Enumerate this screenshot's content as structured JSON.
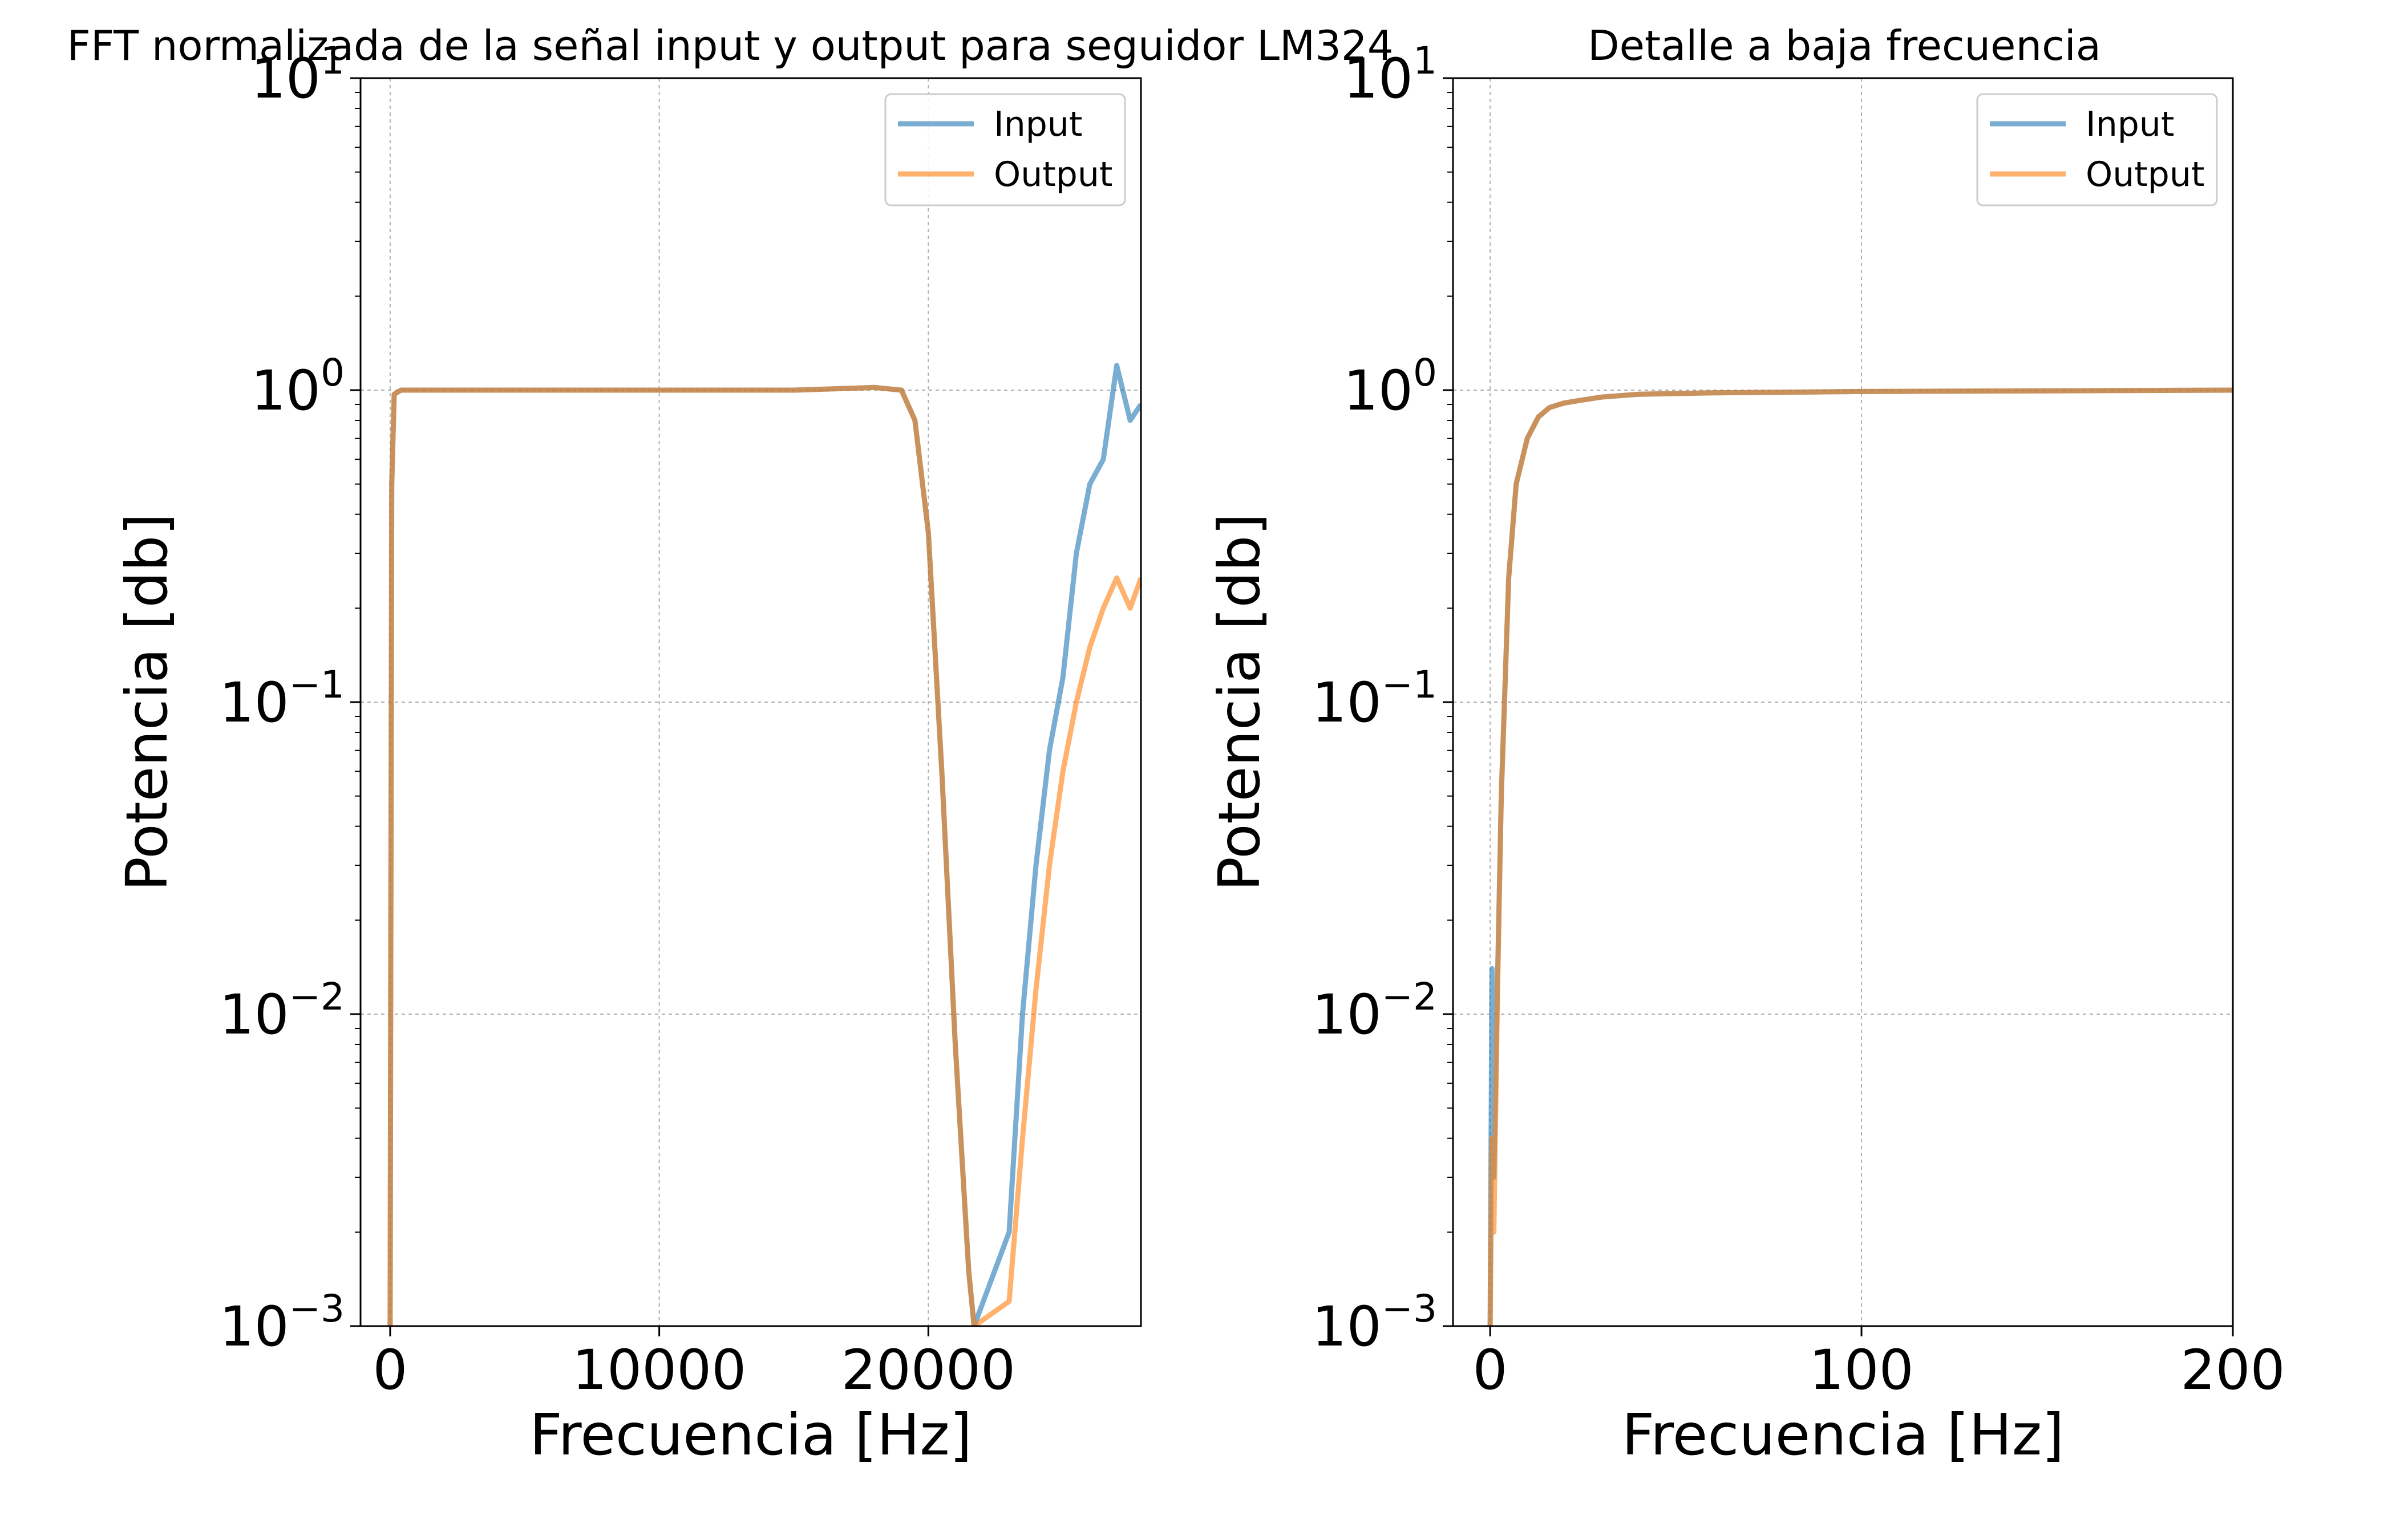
{
  "chart_data": [
    {
      "type": "line",
      "title": "FFT normalizada de la señal input y output para seguidor LM324",
      "xlabel": "Frecuencia [Hz]",
      "ylabel": "Potencia [db]",
      "yscale": "log",
      "xlim": [
        -1100,
        27900
      ],
      "ylim": [
        0.001,
        10
      ],
      "xticks": [
        0,
        10000,
        20000
      ],
      "xticklabels": [
        "0",
        "10000",
        "20000"
      ],
      "yticks": [
        0.001,
        0.01,
        0.1,
        1,
        10
      ],
      "yticklabels": [
        {
          "base": "10",
          "exp": "−3"
        },
        {
          "base": "10",
          "exp": "−2"
        },
        {
          "base": "10",
          "exp": "−1"
        },
        {
          "base": "10",
          "exp": "0"
        },
        {
          "base": "10",
          "exp": "1"
        }
      ],
      "grid": true,
      "legend": {
        "position": "upper right",
        "entries": [
          "Input",
          "Output"
        ]
      },
      "series": [
        {
          "name": "Input",
          "color": "#1f77b4",
          "x": [
            0,
            20,
            60,
            150,
            400,
            1000,
            3000,
            6000,
            9000,
            12000,
            15000,
            18000,
            19000,
            19500,
            20000,
            20500,
            21000,
            21500,
            21700,
            23000,
            23500,
            24000,
            24500,
            25000,
            25500,
            26000,
            26500,
            27000,
            27500,
            27900
          ],
          "y": [
            0.001,
            0.01,
            0.5,
            0.97,
            1.0,
            1.0,
            1.0,
            1.0,
            1.0,
            1.0,
            1.0,
            1.02,
            1.0,
            0.8,
            0.35,
            0.06,
            0.008,
            0.0015,
            0.001,
            0.002,
            0.01,
            0.03,
            0.07,
            0.12,
            0.3,
            0.5,
            0.6,
            1.2,
            0.8,
            0.9
          ]
        },
        {
          "name": "Output",
          "color": "#ff7f0e",
          "x": [
            0,
            20,
            60,
            150,
            400,
            1000,
            3000,
            6000,
            9000,
            12000,
            15000,
            18000,
            19000,
            19500,
            20000,
            20500,
            21000,
            21500,
            21700,
            23000,
            23500,
            24000,
            24500,
            25000,
            25500,
            26000,
            26500,
            27000,
            27500,
            27900
          ],
          "y": [
            0.001,
            0.01,
            0.5,
            0.97,
            1.0,
            1.0,
            1.0,
            1.0,
            1.0,
            1.0,
            1.0,
            1.02,
            1.0,
            0.8,
            0.35,
            0.06,
            0.008,
            0.0015,
            0.001,
            0.0012,
            0.004,
            0.012,
            0.03,
            0.06,
            0.1,
            0.15,
            0.2,
            0.25,
            0.2,
            0.25
          ]
        }
      ]
    },
    {
      "type": "line",
      "title": "Detalle a baja frecuencia",
      "xlabel": "Frecuencia [Hz]",
      "ylabel": "Potencia [db]",
      "yscale": "log",
      "xlim": [
        -10,
        200
      ],
      "ylim": [
        0.001,
        10
      ],
      "xticks": [
        0,
        100,
        200
      ],
      "xticklabels": [
        "0",
        "100",
        "200"
      ],
      "yticks": [
        0.001,
        0.01,
        0.1,
        1,
        10
      ],
      "yticklabels": [
        {
          "base": "10",
          "exp": "−3"
        },
        {
          "base": "10",
          "exp": "−2"
        },
        {
          "base": "10",
          "exp": "−1"
        },
        {
          "base": "10",
          "exp": "0"
        },
        {
          "base": "10",
          "exp": "1"
        }
      ],
      "grid": true,
      "legend": {
        "position": "upper right",
        "entries": [
          "Input",
          "Output"
        ]
      },
      "series": [
        {
          "name": "Input",
          "color": "#1f77b4",
          "x": [
            0,
            0.5,
            1,
            2,
            3,
            5,
            7,
            10,
            13,
            16,
            20,
            25,
            30,
            40,
            60,
            100,
            150,
            200
          ],
          "y": [
            0.001,
            0.014,
            0.003,
            0.013,
            0.05,
            0.25,
            0.5,
            0.7,
            0.82,
            0.88,
            0.91,
            0.93,
            0.95,
            0.97,
            0.98,
            0.99,
            0.995,
            1.0
          ]
        },
        {
          "name": "Output",
          "color": "#ff7f0e",
          "x": [
            0,
            0.5,
            1,
            2,
            3,
            5,
            7,
            10,
            13,
            16,
            20,
            25,
            30,
            40,
            60,
            100,
            150,
            200
          ],
          "y": [
            0.001,
            0.004,
            0.002,
            0.012,
            0.05,
            0.25,
            0.5,
            0.7,
            0.82,
            0.88,
            0.91,
            0.93,
            0.95,
            0.97,
            0.98,
            0.99,
            0.995,
            1.0
          ]
        }
      ]
    }
  ]
}
